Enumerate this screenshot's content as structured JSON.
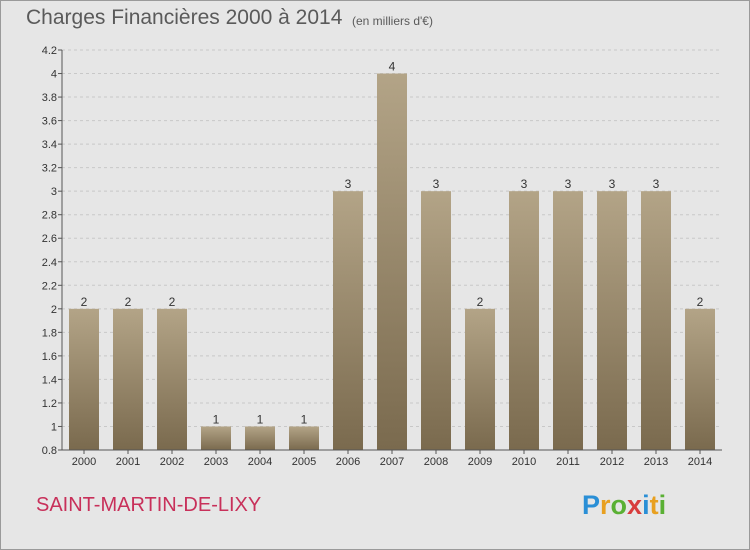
{
  "title": "Charges Financières 2000 à 2014",
  "subtitle": "(en milliers d'€)",
  "commune": "SAINT-MARTIN-DE-LIXY",
  "logo": {
    "letters": [
      "P",
      "r",
      "o",
      "x",
      "i",
      "t",
      "i"
    ],
    "colors": [
      "#2a8fd6",
      "#e8a020",
      "#5ab034",
      "#d83c3c",
      "#2a8fd6",
      "#e8a020",
      "#5ab034"
    ]
  },
  "colors": {
    "bar_top": "#b3a487",
    "bar_bottom": "#7a6a4e",
    "grid": "#c8c8c8",
    "axis": "#555555",
    "text": "#333333"
  },
  "chart_data": {
    "type": "bar",
    "categories": [
      "2000",
      "2001",
      "2002",
      "2003",
      "2004",
      "2005",
      "2006",
      "2007",
      "2008",
      "2009",
      "2010",
      "2011",
      "2012",
      "2013",
      "2014"
    ],
    "values": [
      2,
      2,
      2,
      1,
      1,
      1,
      3,
      4,
      3,
      2,
      3,
      3,
      3,
      3,
      2
    ],
    "ylim": [
      0.8,
      4.2
    ],
    "yticks": [
      "0.8",
      "1",
      "1.2",
      "1.4",
      "1.6",
      "1.8",
      "2",
      "2.2",
      "2.4",
      "2.6",
      "2.8",
      "3",
      "3.2",
      "3.4",
      "3.6",
      "3.8",
      "4",
      "4.2"
    ],
    "ytick_values": [
      0.8,
      1,
      1.2,
      1.4,
      1.6,
      1.8,
      2,
      2.2,
      2.4,
      2.6,
      2.8,
      3,
      3.2,
      3.4,
      3.6,
      3.8,
      4,
      4.2
    ],
    "grid": true
  }
}
